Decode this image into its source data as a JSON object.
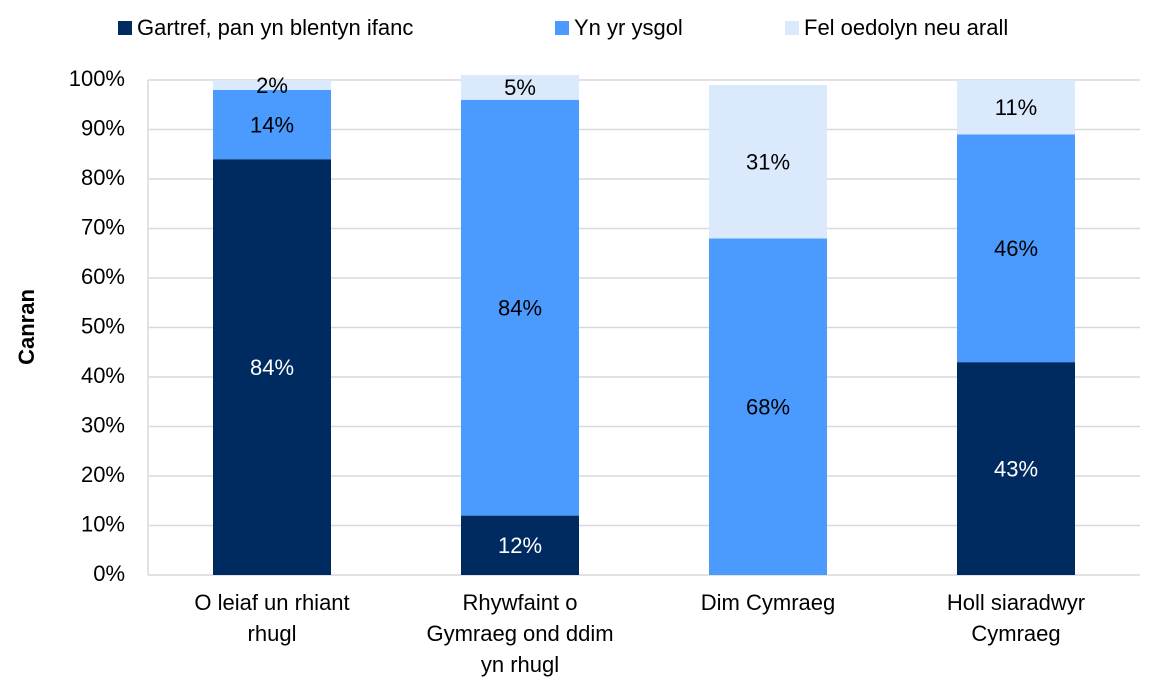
{
  "chart_data": {
    "type": "stacked_bar",
    "y_label": "Canran",
    "categories": [
      "O leiaf un rhiant rhugl",
      "Rhywfaint o Gymraeg ond ddim yn rhugl",
      "Dim Cymraeg",
      "Holl siaradwyr Cymraeg"
    ],
    "series": [
      {
        "name": "Gartref, pan yn blentyn ifanc",
        "color": "#002b60",
        "label_color": "#ffffff",
        "values": [
          84,
          12,
          null,
          43
        ],
        "value_labels": [
          "84%",
          "12%",
          null,
          "43%"
        ]
      },
      {
        "name": "Yn yr ysgol",
        "color": "#4b9bff",
        "label_color": "#000000",
        "values": [
          14,
          84,
          68,
          46
        ],
        "value_labels": [
          "14%",
          "84%",
          "68%",
          "46%"
        ]
      },
      {
        "name": "Fel oedolyn neu arall",
        "color": "#dbe9fd",
        "label_color": "#000000",
        "values": [
          2,
          5,
          31,
          11
        ],
        "value_labels": [
          "2%",
          "5%",
          "31%",
          "11%"
        ]
      }
    ],
    "ylim": [
      0,
      100
    ],
    "yticks": [
      {
        "value": 0,
        "label": "0%"
      },
      {
        "value": 10,
        "label": "10%"
      },
      {
        "value": 20,
        "label": "20%"
      },
      {
        "value": 30,
        "label": "30%"
      },
      {
        "value": 40,
        "label": "40%"
      },
      {
        "value": 50,
        "label": "50%"
      },
      {
        "value": 60,
        "label": "60%"
      },
      {
        "value": 70,
        "label": "70%"
      },
      {
        "value": 80,
        "label": "80%"
      },
      {
        "value": 90,
        "label": "90%"
      },
      {
        "value": 100,
        "label": "100%"
      }
    ],
    "grid": true,
    "legend": "top"
  }
}
